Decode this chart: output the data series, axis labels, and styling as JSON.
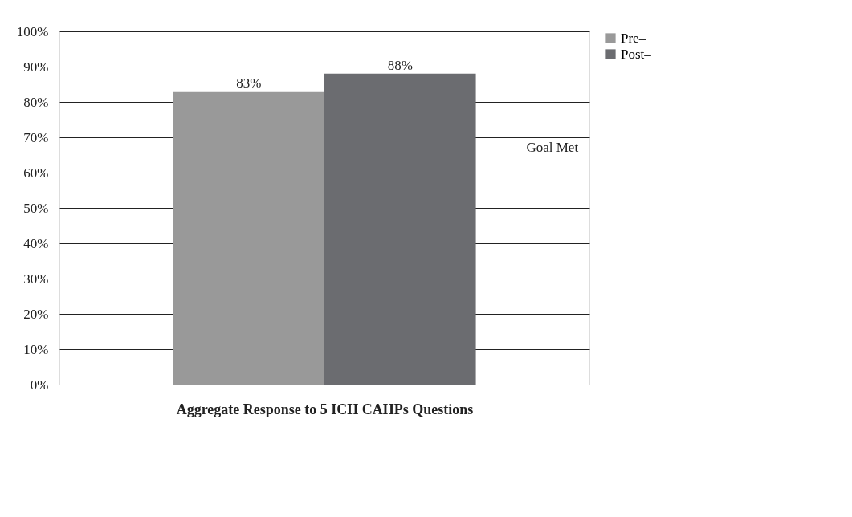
{
  "chart_data": {
    "type": "bar",
    "xlabel": "Aggregate Response to 5 ICH CAHPs Questions",
    "categories": [
      null
    ],
    "series": [
      {
        "name": "Pre–",
        "color": "#999999",
        "values": [
          83
        ],
        "value_labels": [
          "83%"
        ]
      },
      {
        "name": "Post–",
        "color": "#6b6c70",
        "values": [
          88
        ],
        "value_labels": [
          "88%"
        ]
      }
    ],
    "ylim": [
      0,
      100
    ],
    "yticks": [
      {
        "value": 0,
        "label": "0%"
      },
      {
        "value": 10,
        "label": "10%"
      },
      {
        "value": 20,
        "label": "20%"
      },
      {
        "value": 30,
        "label": "30%"
      },
      {
        "value": 40,
        "label": "40%"
      },
      {
        "value": 50,
        "label": "50%"
      },
      {
        "value": 60,
        "label": "60%"
      },
      {
        "value": 70,
        "label": "70%"
      },
      {
        "value": 80,
        "label": "80%"
      },
      {
        "value": 90,
        "label": "90%"
      },
      {
        "value": 100,
        "label": "100%"
      }
    ],
    "annotations": [
      "Goal Met"
    ],
    "grid": "y",
    "legend": "right"
  }
}
